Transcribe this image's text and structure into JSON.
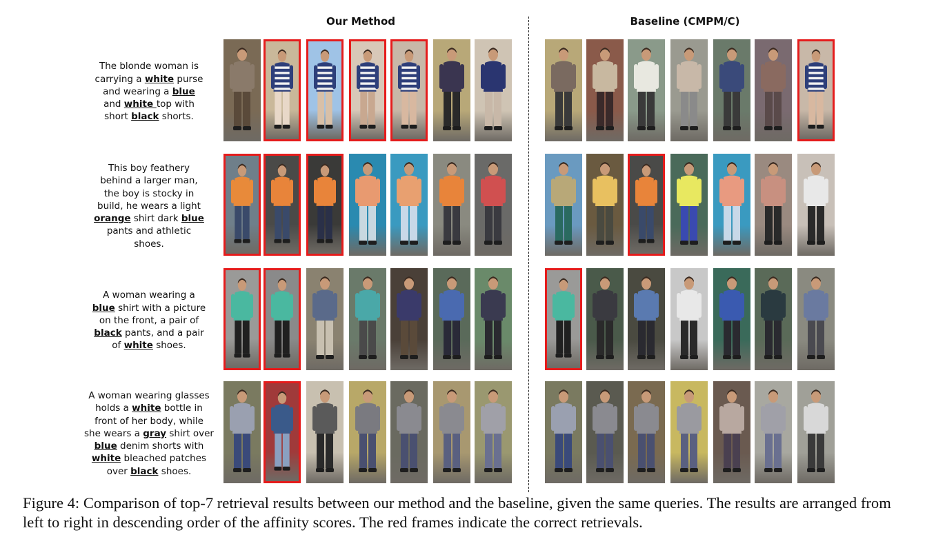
{
  "headers": {
    "left": "Our Method",
    "right": "Baseline (CMPM/C)"
  },
  "queries": [
    [
      {
        "t": "The blonde woman is"
      },
      {
        "br": true
      },
      {
        "t": "carrying a "
      },
      {
        "b": "white"
      },
      {
        "t": " purse"
      },
      {
        "br": true
      },
      {
        "t": "and wearing a "
      },
      {
        "b": "blue"
      },
      {
        "br": true
      },
      {
        "t": "and "
      },
      {
        "b": "white "
      },
      {
        "t": "top with"
      },
      {
        "br": true
      },
      {
        "t": "short "
      },
      {
        "b": "black"
      },
      {
        "t": " shorts."
      }
    ],
    [
      {
        "t": "This boy feathery"
      },
      {
        "br": true
      },
      {
        "t": "behind a larger man,"
      },
      {
        "br": true
      },
      {
        "t": "the boy is stocky in"
      },
      {
        "br": true
      },
      {
        "t": "build, he wears a light"
      },
      {
        "br": true
      },
      {
        "b": "orange"
      },
      {
        "t": " shirt dark "
      },
      {
        "b": "blue"
      },
      {
        "br": true
      },
      {
        "t": "pants and athletic"
      },
      {
        "br": true
      },
      {
        "t": "shoes."
      }
    ],
    [
      {
        "t": "A woman wearing a"
      },
      {
        "br": true
      },
      {
        "b": "blue"
      },
      {
        "t": " shirt with a picture"
      },
      {
        "br": true
      },
      {
        "t": "on the front, a pair of"
      },
      {
        "br": true
      },
      {
        "b": "black"
      },
      {
        "t": " pants, and a pair"
      },
      {
        "br": true
      },
      {
        "t": "of "
      },
      {
        "b": "white"
      },
      {
        "t": " shoes."
      }
    ],
    [
      {
        "t": "A woman wearing glasses"
      },
      {
        "br": true
      },
      {
        "t": "holds a "
      },
      {
        "b": "white"
      },
      {
        "t": " bottle in"
      },
      {
        "br": true
      },
      {
        "t": "front of her body, while"
      },
      {
        "br": true
      },
      {
        "t": "she wears a "
      },
      {
        "b": "gray"
      },
      {
        "t": " shirt over"
      },
      {
        "br": true
      },
      {
        "b": "blue"
      },
      {
        "t": " denim shorts with"
      },
      {
        "br": true
      },
      {
        "b": "white"
      },
      {
        "t": " bleached patches"
      },
      {
        "br": true
      },
      {
        "t": "over "
      },
      {
        "b": "black"
      },
      {
        "t": " shoes."
      }
    ]
  ],
  "results": {
    "ours": [
      [
        {
          "correct": false,
          "bg": "#7a6a55",
          "top": "#8a7a6a",
          "bottom": "#5a4a3a"
        },
        {
          "correct": true,
          "bg": "#c9b89a",
          "top": "#2e3f7a",
          "bottom": "#e8d8c8",
          "stripes": true
        },
        {
          "correct": true,
          "bg": "#9fc3e6",
          "top": "#2e3f7a",
          "bottom": "#d8c0a8",
          "stripes": true
        },
        {
          "correct": true,
          "bg": "#d8c8b8",
          "top": "#2e3f7a",
          "bottom": "#c8a890",
          "stripes": true
        },
        {
          "correct": true,
          "bg": "#c8b8a8",
          "top": "#2e3f7a",
          "bottom": "#d8b8a0",
          "stripes": true
        },
        {
          "correct": false,
          "bg": "#b8a878",
          "top": "#3a3550",
          "bottom": "#2a2a2a"
        },
        {
          "correct": false,
          "bg": "#cfc4b4",
          "top": "#2a3570",
          "bottom": "#c8b8a8"
        }
      ],
      [
        {
          "correct": true,
          "bg": "#6f7f8a",
          "top": "#e88a3a",
          "bottom": "#3a4a6a"
        },
        {
          "correct": true,
          "bg": "#4a4a48",
          "top": "#e8843a",
          "bottom": "#3a4a6a"
        },
        {
          "correct": true,
          "bg": "#3a3a38",
          "top": "#e8843a",
          "bottom": "#2a3048"
        },
        {
          "correct": false,
          "bg": "#2a8ab0",
          "top": "#e89a70",
          "bottom": "#c8d8e0"
        },
        {
          "correct": false,
          "bg": "#3a9ac0",
          "top": "#e8a070",
          "bottom": "#c8d8e8"
        },
        {
          "correct": false,
          "bg": "#8a8a80",
          "top": "#e8843a",
          "bottom": "#3a3a40"
        },
        {
          "correct": false,
          "bg": "#6a6a68",
          "top": "#d05050",
          "bottom": "#3a3a40"
        }
      ],
      [
        {
          "correct": true,
          "bg": "#9a9a98",
          "top": "#4ab8a0",
          "bottom": "#202020"
        },
        {
          "correct": true,
          "bg": "#8a8a8a",
          "top": "#4ab8a0",
          "bottom": "#202020"
        },
        {
          "correct": false,
          "bg": "#8a8270",
          "top": "#5a6a8a",
          "bottom": "#c8c0b0"
        },
        {
          "correct": false,
          "bg": "#6a7a6a",
          "top": "#4aa8a8",
          "bottom": "#4a4a4a"
        },
        {
          "correct": false,
          "bg": "#4a4038",
          "top": "#3a3a6a",
          "bottom": "#5a4a3a"
        },
        {
          "correct": false,
          "bg": "#5a6a5a",
          "top": "#4a6ab0",
          "bottom": "#2a2a38"
        },
        {
          "correct": false,
          "bg": "#6a8a6a",
          "top": "#3a3a50",
          "bottom": "#2a2a30"
        }
      ],
      [
        {
          "correct": false,
          "bg": "#7a7a60",
          "top": "#9aa0b0",
          "bottom": "#3a4a7a"
        },
        {
          "correct": true,
          "bg": "#a03a3a",
          "top": "#3a5a8a",
          "bottom": "#8aa0c0"
        },
        {
          "correct": false,
          "bg": "#c8c0b0",
          "top": "#5a5a5a",
          "bottom": "#2a2a2a"
        },
        {
          "correct": false,
          "bg": "#b8a868",
          "top": "#7a7a80",
          "bottom": "#4a5070"
        },
        {
          "correct": false,
          "bg": "#6a6a60",
          "top": "#8a8a90",
          "bottom": "#4a5070"
        },
        {
          "correct": false,
          "bg": "#a89870",
          "top": "#8a8a90",
          "bottom": "#5a6080"
        },
        {
          "correct": false,
          "bg": "#9a9870",
          "top": "#a0a0a8",
          "bottom": "#6a7090"
        }
      ]
    ],
    "baseline": [
      [
        {
          "correct": false,
          "bg": "#b8a878",
          "top": "#7a6a60",
          "bottom": "#3a3a3a"
        },
        {
          "correct": false,
          "bg": "#8a5a4a",
          "top": "#c8b8a0",
          "bottom": "#3a2a2a"
        },
        {
          "correct": false,
          "bg": "#8a9a8a",
          "top": "#e8e8e0",
          "bottom": "#3a3a3a"
        },
        {
          "correct": false,
          "bg": "#9a9a90",
          "top": "#c8b8a8",
          "bottom": "#8a8a8a"
        },
        {
          "correct": false,
          "bg": "#6a7a6a",
          "top": "#3a4a7a",
          "bottom": "#3a3a3a"
        },
        {
          "correct": false,
          "bg": "#7a6a70",
          "top": "#8a6a60",
          "bottom": "#5a4a4a"
        },
        {
          "correct": true,
          "bg": "#c8b8a8",
          "top": "#2e3f7a",
          "bottom": "#d8b8a0",
          "stripes": true
        }
      ],
      [
        {
          "correct": false,
          "bg": "#6a9ac0",
          "top": "#b8a878",
          "bottom": "#2a6a60"
        },
        {
          "correct": false,
          "bg": "#6a5a40",
          "top": "#e8c060",
          "bottom": "#4a4a40"
        },
        {
          "correct": true,
          "bg": "#4a4a48",
          "top": "#e8843a",
          "bottom": "#3a4a6a"
        },
        {
          "correct": false,
          "bg": "#4a6a5a",
          "top": "#e8e860",
          "bottom": "#3a4ab0"
        },
        {
          "correct": false,
          "bg": "#3a9ac0",
          "top": "#e89a80",
          "bottom": "#c8d8e8"
        },
        {
          "correct": false,
          "bg": "#9a8a80",
          "top": "#c89080",
          "bottom": "#2a2a2a"
        },
        {
          "correct": false,
          "bg": "#c8c0b8",
          "top": "#e8e8e8",
          "bottom": "#2a2a2a"
        }
      ],
      [
        {
          "correct": true,
          "bg": "#9a9a98",
          "top": "#4ab8a0",
          "bottom": "#202020"
        },
        {
          "correct": false,
          "bg": "#4a5a4a",
          "top": "#3a3a40",
          "bottom": "#2a2a2a"
        },
        {
          "correct": false,
          "bg": "#4a4a40",
          "top": "#5a7ab0",
          "bottom": "#2a2a30"
        },
        {
          "correct": false,
          "bg": "#c8c8c8",
          "top": "#e8e8e8",
          "bottom": "#2a2a2a"
        },
        {
          "correct": false,
          "bg": "#3a6a5a",
          "top": "#3a5ab0",
          "bottom": "#2a2a30"
        },
        {
          "correct": false,
          "bg": "#5a6a58",
          "top": "#2a3a40",
          "bottom": "#2a2a30"
        },
        {
          "correct": false,
          "bg": "#8a8a80",
          "top": "#6a7aa0",
          "bottom": "#4a4a50"
        }
      ],
      [
        {
          "correct": false,
          "bg": "#7a7a60",
          "top": "#9aa0b0",
          "bottom": "#3a4a7a"
        },
        {
          "correct": false,
          "bg": "#5a5a50",
          "top": "#8a8a90",
          "bottom": "#4a5070"
        },
        {
          "correct": false,
          "bg": "#7a6a50",
          "top": "#8a8a90",
          "bottom": "#4a5070"
        },
        {
          "correct": false,
          "bg": "#c8b860",
          "top": "#9a9aa0",
          "bottom": "#5a6080"
        },
        {
          "correct": false,
          "bg": "#6a5a50",
          "top": "#b8a8a0",
          "bottom": "#4a4050"
        },
        {
          "correct": false,
          "bg": "#a8a8a0",
          "top": "#a0a0a8",
          "bottom": "#6a7090"
        },
        {
          "correct": false,
          "bg": "#a0a098",
          "top": "#d8d8d8",
          "bottom": "#3a3a3a"
        }
      ]
    ]
  },
  "colors": {
    "correct_frame": "#e51c1c"
  },
  "caption": "Figure 4: Comparison of top-7 retrieval results between our method and the baseline, given the same queries. The results are arranged from left to right in descending order of the affinity scores. The red frames indicate the correct retrievals."
}
